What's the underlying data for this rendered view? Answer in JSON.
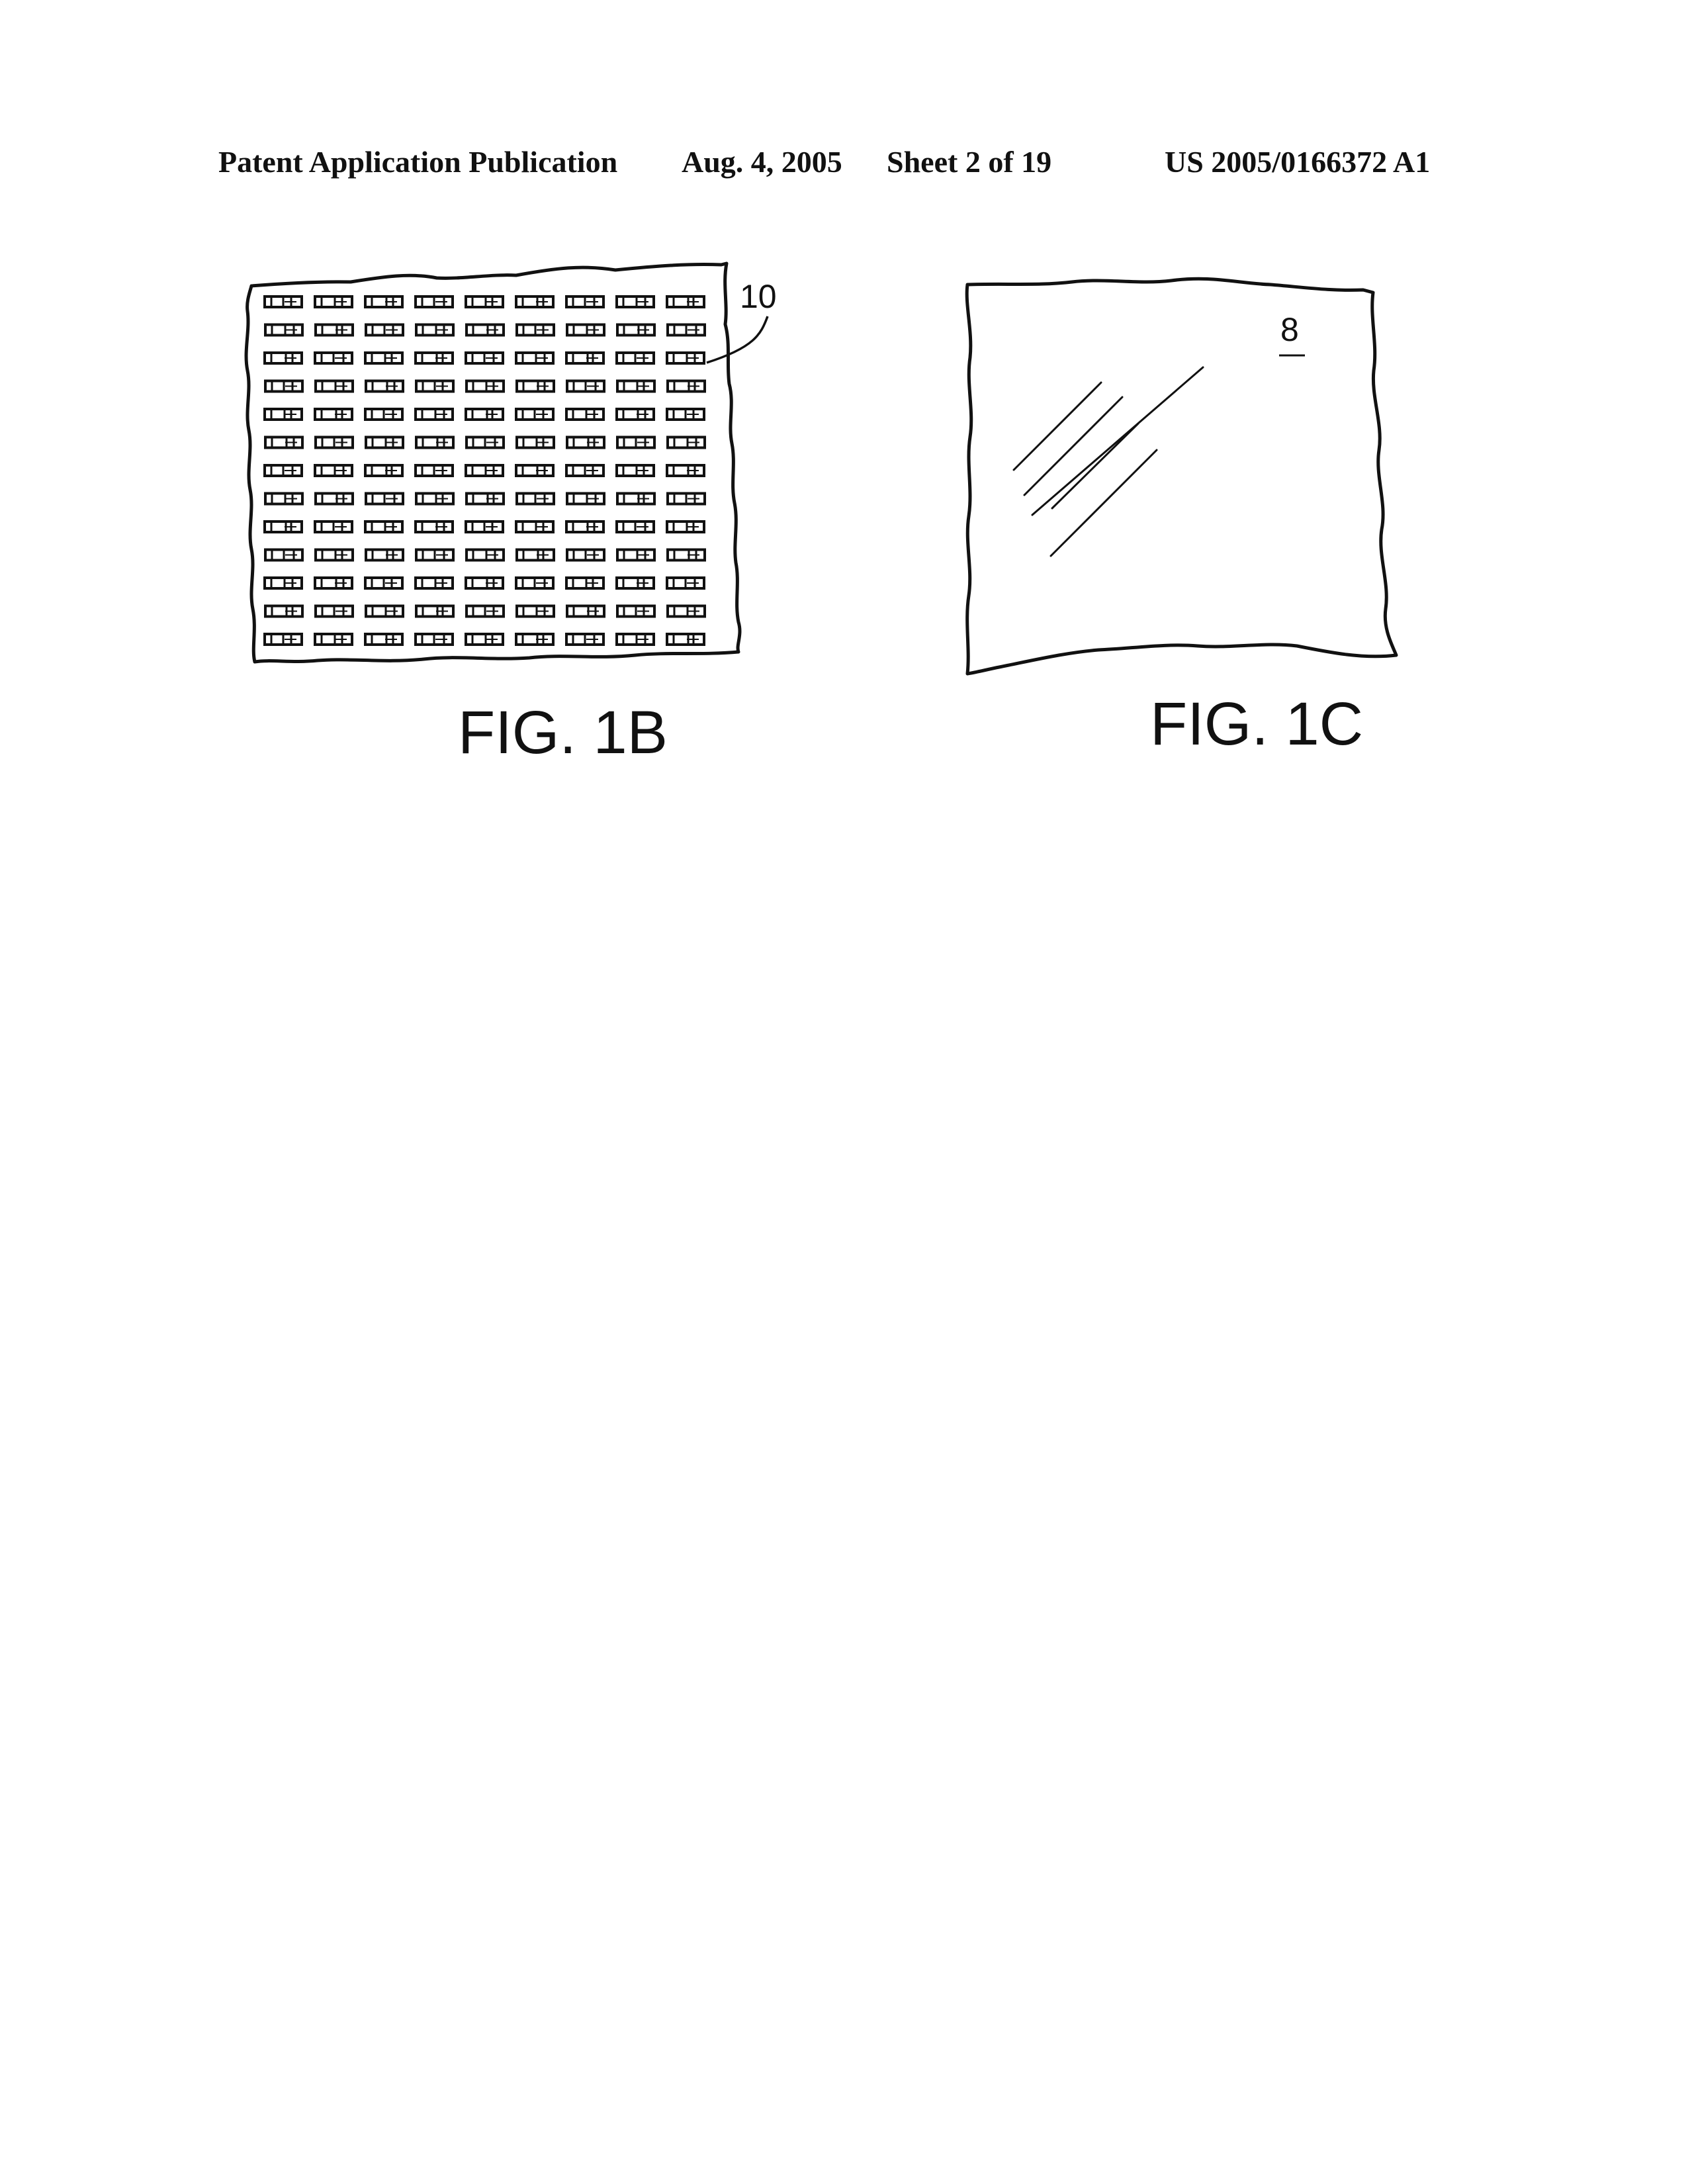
{
  "header": {
    "publication": "Patent Application Publication",
    "date": "Aug. 4, 2005",
    "sheet": "Sheet 2 of 19",
    "number": "US 2005/0166372 A1"
  },
  "fig_1b": {
    "label": "FIG. 1B",
    "reference": "10",
    "grid": {
      "rows": 13,
      "cols": 9
    }
  },
  "fig_1c": {
    "label": "FIG. 1C",
    "reference": "8"
  }
}
